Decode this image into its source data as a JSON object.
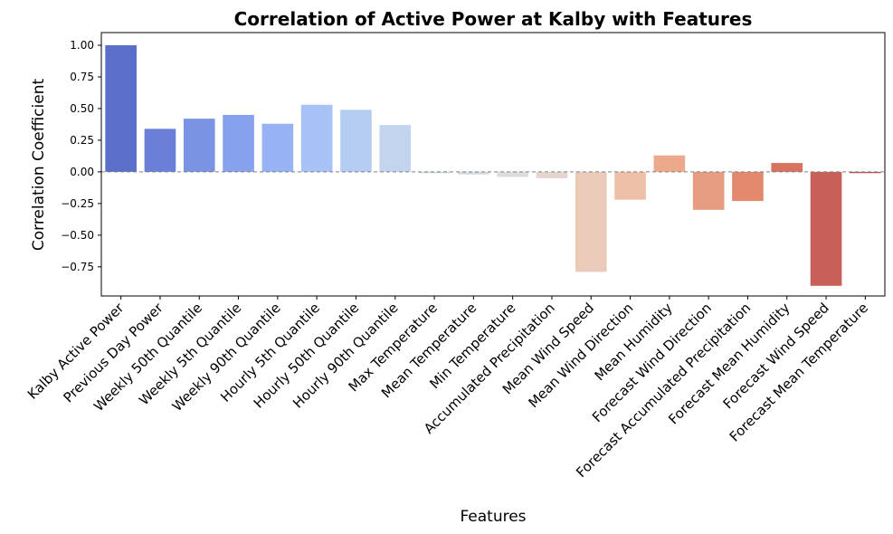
{
  "chart_data": {
    "type": "bar",
    "title": "Correlation of Active Power at Kalby with Features",
    "xlabel": "Features",
    "ylabel": "Correlation Coefficient",
    "ylim": [
      -0.98,
      1.1
    ],
    "yticks": [
      "1.00",
      "0.75",
      "0.50",
      "0.25",
      "0.00",
      "−0.25",
      "−0.50",
      "−0.75"
    ],
    "ytick_values": [
      1.0,
      0.75,
      0.5,
      0.25,
      0.0,
      -0.25,
      -0.5,
      -0.75
    ],
    "zero_line": true,
    "grid": false,
    "categories": [
      "Kalby Active Power",
      "Previous Day Power",
      "Weekly 50th Quantile",
      "Weekly 5th Quantile",
      "Weekly 90th Quantile",
      "Hourly 5th Quantile",
      "Hourly 50th Quantile",
      "Hourly 90th Quantile",
      "Max Temperature",
      "Mean Temperature",
      "Min Temperature",
      "Accumulated Precipitation",
      "Mean Wind Speed",
      "Mean Wind Direction",
      "Mean Humidity",
      "Forecast Wind Direction",
      "Forecast Accumulated Precipitation",
      "Forecast Mean Humidity",
      "Forecast Wind Speed",
      "Forecast Mean Temperature"
    ],
    "values": [
      1.0,
      0.34,
      0.42,
      0.45,
      0.38,
      0.53,
      0.49,
      0.37,
      -0.01,
      -0.02,
      -0.04,
      -0.05,
      -0.79,
      -0.22,
      0.13,
      -0.3,
      -0.23,
      0.07,
      -0.9,
      -0.01
    ],
    "colors": [
      "#5a6fc9",
      "#6a80d8",
      "#7a93e3",
      "#86a2ec",
      "#98b3f3",
      "#a7c2f7",
      "#b6cdf3",
      "#c3d4ef",
      "#cad6e8",
      "#d2d8e0",
      "#dcdcdc",
      "#e4d6cf",
      "#eacbba",
      "#eec0a8",
      "#eda98c",
      "#e69c81",
      "#e2896e",
      "#d6725d",
      "#c8605a",
      "#bd4e52"
    ]
  }
}
